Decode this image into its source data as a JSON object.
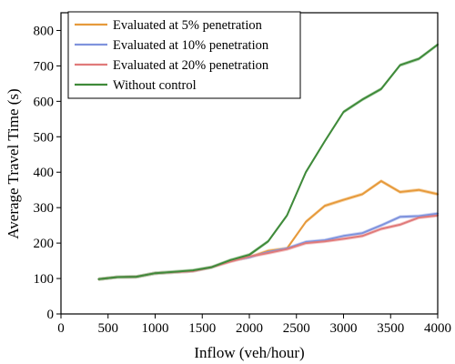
{
  "chart_data": {
    "type": "line",
    "xlabel": "Inflow (veh/hour)",
    "ylabel": "Average Travel Time (s)",
    "xlim": [
      0,
      4000
    ],
    "ylim": [
      0,
      850
    ],
    "xticks": [
      0,
      500,
      1000,
      1500,
      2000,
      2500,
      3000,
      3500,
      4000
    ],
    "yticks": [
      0,
      100,
      200,
      300,
      400,
      500,
      600,
      700,
      800
    ],
    "grid": false,
    "legend_position": "top-left",
    "series": [
      {
        "name": "Evaluated at 5% penetration",
        "color": "#e69a3c",
        "band_color": "#f6cf9c",
        "x": [
          400,
          600,
          800,
          1000,
          1200,
          1400,
          1600,
          1800,
          2000,
          2200,
          2400,
          2600,
          2800,
          3000,
          3200,
          3400,
          3600,
          3800,
          4000
        ],
        "y": [
          98,
          104,
          105,
          115,
          118,
          121,
          132,
          150,
          160,
          178,
          185,
          260,
          305,
          322,
          338,
          375,
          344,
          350,
          338
        ]
      },
      {
        "name": "Evaluated at 10% penetration",
        "color": "#7f93dd",
        "band_color": "#c3cdf1",
        "x": [
          400,
          600,
          800,
          1000,
          1200,
          1400,
          1600,
          1800,
          2000,
          2200,
          2400,
          2600,
          2800,
          3000,
          3200,
          3400,
          3600,
          3800,
          4000
        ],
        "y": [
          98,
          104,
          105,
          115,
          118,
          121,
          132,
          150,
          160,
          175,
          185,
          203,
          208,
          220,
          228,
          250,
          274,
          276,
          283
        ]
      },
      {
        "name": "Evaluated at 20% penetration",
        "color": "#e07a7a",
        "band_color": "#f4c2c2",
        "x": [
          400,
          600,
          800,
          1000,
          1200,
          1400,
          1600,
          1800,
          2000,
          2200,
          2400,
          2600,
          2800,
          3000,
          3200,
          3400,
          3600,
          3800,
          4000
        ],
        "y": [
          98,
          104,
          105,
          115,
          118,
          121,
          132,
          148,
          162,
          172,
          183,
          200,
          205,
          212,
          220,
          240,
          252,
          272,
          278
        ]
      },
      {
        "name": "Without control",
        "color": "#3f8a3a",
        "band_color": "#a9cfa5",
        "x": [
          400,
          600,
          800,
          1000,
          1200,
          1400,
          1600,
          1800,
          2000,
          2200,
          2400,
          2600,
          2800,
          3000,
          3200,
          3400,
          3600,
          3800,
          4000
        ],
        "y": [
          98,
          104,
          105,
          115,
          119,
          123,
          132,
          152,
          167,
          205,
          278,
          400,
          487,
          570,
          605,
          635,
          702,
          720,
          760
        ]
      }
    ]
  }
}
